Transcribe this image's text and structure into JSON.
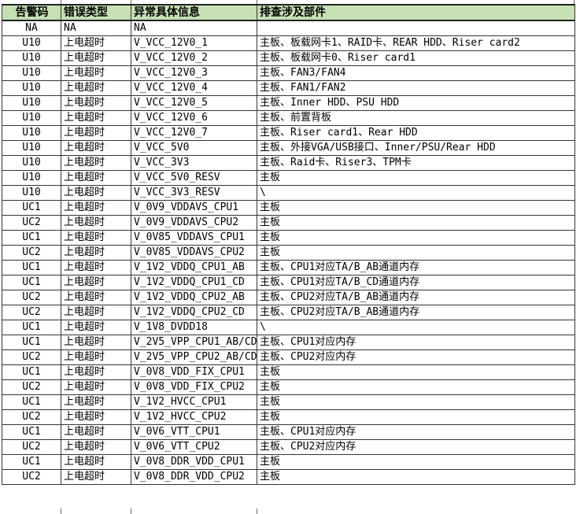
{
  "table": {
    "colors": {
      "header_bg": "#c6e0b4",
      "grid_line": "#353535",
      "text": "#000000",
      "background": "#ffffff"
    },
    "columns": [
      {
        "key": "alarm_code",
        "label": "告警码"
      },
      {
        "key": "error_type",
        "label": "错误类型"
      },
      {
        "key": "detail",
        "label": "异常具体信息"
      },
      {
        "key": "components",
        "label": "排查涉及部件"
      }
    ],
    "rows": [
      [
        "NA",
        "NA",
        "NA",
        ""
      ],
      [
        "U10",
        "上电超时",
        "V_VCC_12V0_1",
        "主板、板载网卡1、RAID卡、REAR HDD、Riser card2"
      ],
      [
        "U10",
        "上电超时",
        "V_VCC_12V0_2",
        "主板、板载网卡0、Riser card1"
      ],
      [
        "U10",
        "上电超时",
        "V_VCC_12V0_3",
        "主板、FAN3/FAN4"
      ],
      [
        "U10",
        "上电超时",
        "V_VCC_12V0_4",
        "主板、FAN1/FAN2"
      ],
      [
        "U10",
        "上电超时",
        "V_VCC_12V0_5",
        "主板、Inner HDD、PSU HDD"
      ],
      [
        "U10",
        "上电超时",
        "V_VCC_12V0_6",
        "主板、前置背板"
      ],
      [
        "U10",
        "上电超时",
        "V_VCC_12V0_7",
        "主板、Riser card1、Rear HDD"
      ],
      [
        "U10",
        "上电超时",
        "V_VCC_5V0",
        "主板、外接VGA/USB接口、Inner/PSU/Rear HDD"
      ],
      [
        "U10",
        "上电超时",
        "V_VCC_3V3",
        "主板、Raid卡、Riser3、TPM卡"
      ],
      [
        "U10",
        "上电超时",
        "V_VCC_5V0_RESV",
        "主板"
      ],
      [
        "U10",
        "上电超时",
        "V_VCC_3V3_RESV",
        "\\"
      ],
      [
        "UC1",
        "上电超时",
        "V_0V9_VDDAVS_CPU1",
        "主板"
      ],
      [
        "UC2",
        "上电超时",
        "V_0V9_VDDAVS_CPU2",
        "主板"
      ],
      [
        "UC1",
        "上电超时",
        "V_0V85_VDDAVS_CPU1",
        "主板"
      ],
      [
        "UC2",
        "上电超时",
        "V_0V85_VDDAVS_CPU2",
        "主板"
      ],
      [
        "UC1",
        "上电超时",
        "V_1V2_VDDQ_CPU1_AB",
        "主板、CPU1对应TA/B_AB通道内存"
      ],
      [
        "UC1",
        "上电超时",
        "V_1V2_VDDQ_CPU1_CD",
        "主板、CPU1对应TA/B_CD通道内存"
      ],
      [
        "UC2",
        "上电超时",
        "V_1V2_VDDQ_CPU2_AB",
        "主板、CPU2对应TA/B_AB通道内存"
      ],
      [
        "UC2",
        "上电超时",
        "V_1V2_VDDQ_CPU2_CD",
        "主板、CPU2对应TA/B_AB通道内存"
      ],
      [
        "UC1",
        "上电超时",
        "V_1V8_DVDD18",
        "\\"
      ],
      [
        "UC1",
        "上电超时",
        "V_2V5_VPP_CPU1_AB/CD",
        "主板、CPU1对应内存"
      ],
      [
        "UC2",
        "上电超时",
        "V_2V5_VPP_CPU2_AB/CD",
        "主板、CPU2对应内存"
      ],
      [
        "UC1",
        "上电超时",
        "V_0V8_VDD_FIX_CPU1",
        "主板"
      ],
      [
        "UC2",
        "上电超时",
        "V_0V8_VDD_FIX_CPU2",
        "主板"
      ],
      [
        "UC1",
        "上电超时",
        "V_1V2_HVCC_CPU1",
        "主板"
      ],
      [
        "UC2",
        "上电超时",
        "V_1V2_HVCC_CPU2",
        "主板"
      ],
      [
        "UC1",
        "上电超时",
        "V_0V6_VTT_CPU1",
        "主板、CPU1对应内存"
      ],
      [
        "UC2",
        "上电超时",
        "V_0V6_VTT_CPU2",
        "主板、CPU2对应内存"
      ],
      [
        "UC1",
        "上电超时",
        "V_0V8_DDR_VDD_CPU1",
        "主板"
      ],
      [
        "UC2",
        "上电超时",
        "V_0V8_DDR_VDD_CPU2",
        "主板"
      ]
    ]
  }
}
